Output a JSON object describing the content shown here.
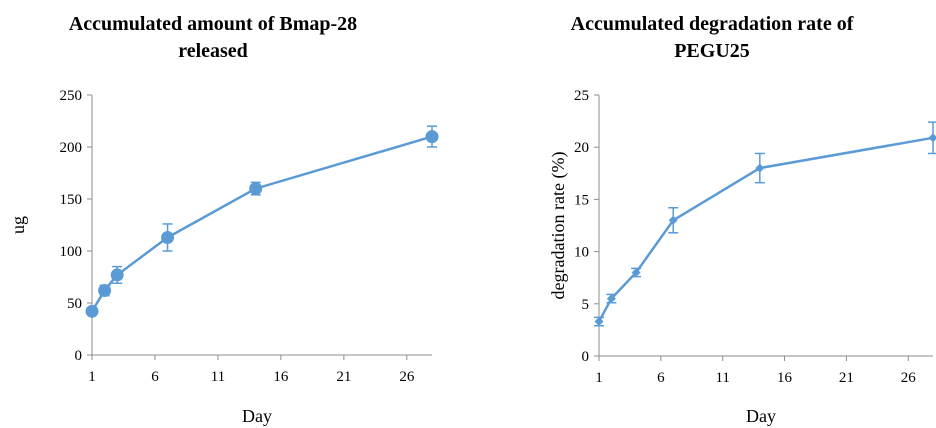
{
  "colors": {
    "series": "#5B9BD5",
    "axis": "#8c8c8c",
    "text": "#000000"
  },
  "chart_data": [
    {
      "type": "line",
      "title_lines": [
        "Accumulated amount of Bmap-28",
        "released"
      ],
      "xlabel": "Day",
      "ylabel": "ug",
      "xlim": [
        1,
        28
      ],
      "ylim": [
        0,
        250
      ],
      "x_ticks": [
        1,
        6,
        11,
        16,
        21,
        26
      ],
      "y_ticks": [
        0,
        50,
        100,
        150,
        200,
        250
      ],
      "grid": false,
      "legend": "none",
      "marker": "circle",
      "series": [
        {
          "x": [
            1,
            2,
            3,
            7,
            14,
            28
          ],
          "y": [
            42,
            62,
            77,
            113,
            160,
            210
          ],
          "error": [
            3,
            5,
            8,
            13,
            6,
            10
          ]
        }
      ]
    },
    {
      "type": "line",
      "title_lines": [
        "Accumulated degradation rate of",
        "PEGU25"
      ],
      "xlabel": "Day",
      "ylabel": "degradation rate (%)",
      "xlim": [
        1,
        28
      ],
      "ylim": [
        0,
        25
      ],
      "x_ticks": [
        1,
        6,
        11,
        16,
        21,
        26
      ],
      "y_ticks": [
        0,
        5,
        10,
        15,
        20,
        25
      ],
      "grid": false,
      "legend": "none",
      "marker": "diamond",
      "series": [
        {
          "x": [
            1,
            2,
            4,
            7,
            14,
            28
          ],
          "y": [
            3.3,
            5.5,
            8.0,
            13.0,
            18.0,
            20.9
          ],
          "error": [
            0.4,
            0.4,
            0.4,
            1.2,
            1.4,
            1.5
          ]
        }
      ]
    }
  ]
}
